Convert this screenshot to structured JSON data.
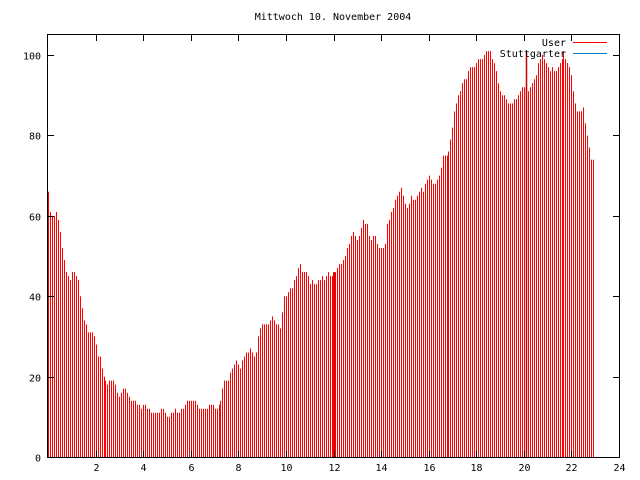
{
  "chart_data": {
    "type": "bar",
    "title": "Mittwoch 10. November 2004",
    "xlabel": "",
    "ylabel": "",
    "xlim": [
      0,
      24
    ],
    "ylim": [
      0,
      105
    ],
    "xticks": [
      2,
      4,
      6,
      8,
      10,
      12,
      14,
      16,
      18,
      20,
      22,
      24
    ],
    "yticks": [
      0,
      20,
      40,
      60,
      80,
      100
    ],
    "grid": false,
    "legend_position": "top-right",
    "series": [
      {
        "name": "User",
        "color": "#ff0000",
        "interval_hours": 0.083333,
        "values": [
          66,
          61,
          60,
          60,
          61,
          59,
          56,
          52,
          49,
          46,
          45,
          44,
          46,
          46,
          45,
          44,
          40,
          37,
          34,
          33,
          31,
          31,
          31,
          30,
          28,
          25,
          25,
          22,
          20,
          19,
          18,
          19,
          19,
          19,
          18,
          16,
          15,
          16,
          17,
          17,
          16,
          15,
          14,
          14,
          14,
          13,
          13,
          12,
          13,
          13,
          12,
          12,
          11,
          11,
          11,
          11,
          11,
          12,
          12,
          11,
          10,
          10,
          11,
          11,
          12,
          11,
          11,
          12,
          12,
          13,
          14,
          14,
          14,
          14,
          14,
          13,
          12,
          12,
          12,
          12,
          12,
          13,
          13,
          13,
          12,
          12,
          13,
          14,
          17,
          19,
          19,
          19,
          21,
          22,
          23,
          24,
          23,
          22,
          24,
          25,
          26,
          26,
          27,
          26,
          25,
          26,
          30,
          32,
          33,
          33,
          33,
          33,
          34,
          35,
          34,
          33,
          33,
          32,
          36,
          40,
          40,
          41,
          42,
          42,
          44,
          45,
          47,
          48,
          46,
          46,
          46,
          45,
          43,
          44,
          43,
          43,
          44,
          44,
          45,
          44,
          45,
          46,
          45,
          45,
          46,
          46,
          47,
          48,
          48,
          49,
          50,
          52,
          53,
          55,
          56,
          55,
          54,
          55,
          57,
          59,
          58,
          58,
          55,
          54,
          55,
          55,
          53,
          52,
          52,
          52,
          53,
          58,
          59,
          61,
          62,
          64,
          65,
          66,
          67,
          65,
          63,
          62,
          63,
          65,
          64,
          64,
          65,
          66,
          67,
          66,
          68,
          69,
          70,
          69,
          68,
          68,
          69,
          70,
          72,
          75,
          75,
          75,
          76,
          79,
          82,
          86,
          88,
          90,
          91,
          93,
          94,
          94,
          96,
          97,
          97,
          97,
          98,
          99,
          99,
          99,
          100,
          101,
          101,
          101,
          99,
          98,
          96,
          93,
          91,
          90,
          90,
          89,
          88,
          88,
          88,
          89,
          89,
          90,
          91,
          92,
          92,
          91,
          91,
          92,
          93,
          94,
          95,
          98,
          99,
          100,
          99,
          98,
          97,
          96,
          97,
          96,
          96,
          97,
          98,
          99,
          101,
          99,
          98,
          97,
          95,
          91,
          88,
          86,
          86,
          86,
          87,
          83,
          80,
          77,
          74,
          74
        ]
      },
      {
        "name": "Stuttgarter",
        "color": "#0080c0",
        "interval_hours": 0.083333,
        "values": []
      }
    ],
    "annotation_lines": [
      {
        "x": 12.0,
        "y": 46,
        "color": "#cc0000"
      },
      {
        "x": 20.08,
        "y": 101,
        "color": "#cc0000"
      }
    ]
  }
}
